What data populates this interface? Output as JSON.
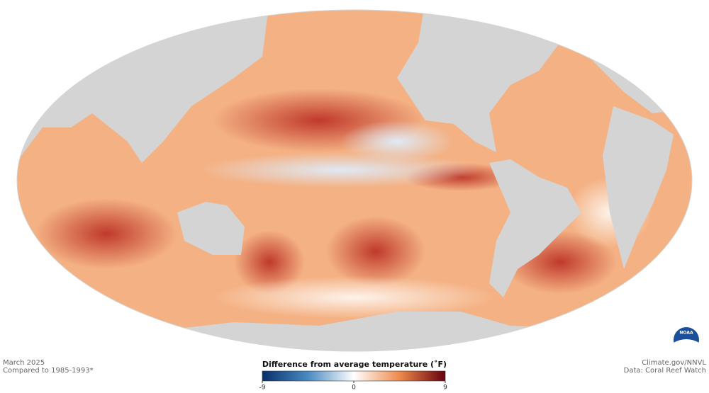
{
  "header": {
    "date": "March 2025",
    "baseline": "Compared to 1985-1993*"
  },
  "legend": {
    "title": "Difference from average temperature (˚F)",
    "vlim": [
      -9,
      9
    ],
    "ticks": [
      -9,
      0,
      9
    ]
  },
  "credits": {
    "site": "Climate.gov/NNVL",
    "source": "Data: Coral Reef Watch",
    "logo": "NOAA"
  }
}
